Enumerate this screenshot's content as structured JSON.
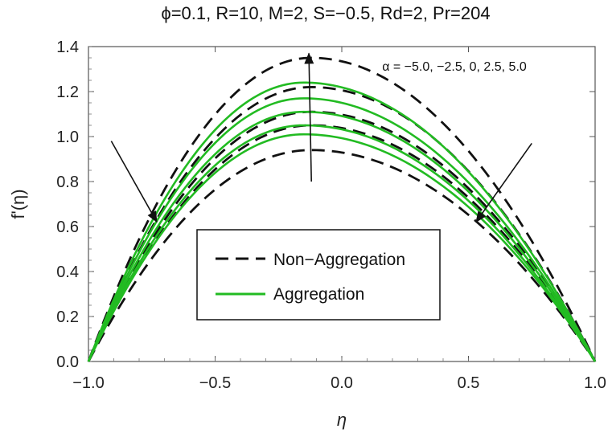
{
  "chart_data": {
    "type": "line",
    "title": "ϕ=0.1, R=10, M=2, S=−0.5, Rd=2, Pr=204",
    "xlabel": "η",
    "ylabel": "f'(η)",
    "xlim": [
      -1.0,
      1.0
    ],
    "ylim": [
      0.0,
      1.4
    ],
    "x_ticks": [
      -1.0,
      -0.5,
      0.0,
      0.5,
      1.0
    ],
    "x_tick_labels": [
      "−1.0",
      "−0.5",
      "0.0",
      "0.5",
      "1.0"
    ],
    "y_ticks": [
      0.0,
      0.2,
      0.4,
      0.6,
      0.8,
      1.0,
      1.2,
      1.4
    ],
    "y_tick_labels": [
      "0.0",
      "0.2",
      "0.4",
      "0.6",
      "0.8",
      "1.0",
      "1.2",
      "1.4"
    ],
    "annotation": "α = −5.0, −2.5, 0, 2.5, 5.0",
    "alpha_values": [
      -5.0,
      -2.5,
      0,
      2.5,
      5.0
    ],
    "colors": {
      "non_aggregation": "#111111",
      "aggregation": "#22bb22",
      "arrow": "#111111"
    },
    "series": [
      {
        "name": "Non-Aggregation",
        "style": "dashed",
        "alpha": -5.0,
        "peak_x": -0.12,
        "peak_y": 0.94
      },
      {
        "name": "Non-Aggregation",
        "style": "dashed",
        "alpha": -2.5,
        "peak_x": -0.12,
        "peak_y": 1.05
      },
      {
        "name": "Non-Aggregation",
        "style": "dashed",
        "alpha": 0,
        "peak_x": -0.12,
        "peak_y": 1.11
      },
      {
        "name": "Non-Aggregation",
        "style": "dashed",
        "alpha": 2.5,
        "peak_x": -0.12,
        "peak_y": 1.22
      },
      {
        "name": "Non-Aggregation",
        "style": "dashed",
        "alpha": 5.0,
        "peak_x": -0.12,
        "peak_y": 1.35
      },
      {
        "name": "Aggregation",
        "style": "solid",
        "alpha": -5.0,
        "peak_x": -0.15,
        "peak_y": 1.01
      },
      {
        "name": "Aggregation",
        "style": "solid",
        "alpha": -2.5,
        "peak_x": -0.15,
        "peak_y": 1.05
      },
      {
        "name": "Aggregation",
        "style": "solid",
        "alpha": 0,
        "peak_x": -0.15,
        "peak_y": 1.11
      },
      {
        "name": "Aggregation",
        "style": "solid",
        "alpha": 2.5,
        "peak_x": -0.15,
        "peak_y": 1.17
      },
      {
        "name": "Aggregation",
        "style": "solid",
        "alpha": 5.0,
        "peak_x": -0.15,
        "peak_y": 1.24
      }
    ],
    "arrows": [
      {
        "name": "left-arrow",
        "from": [
          -0.91,
          0.98
        ],
        "to": [
          -0.73,
          0.62
        ]
      },
      {
        "name": "center-arrow",
        "from": [
          -0.12,
          0.8
        ],
        "to": [
          -0.13,
          1.37
        ]
      },
      {
        "name": "right-arrow",
        "from": [
          0.75,
          0.97
        ],
        "to": [
          0.53,
          0.62
        ]
      }
    ],
    "legend": {
      "placement": "center-left",
      "entries": [
        {
          "label": "Non−Aggregation",
          "style": "dashed"
        },
        {
          "label": "Aggregation",
          "style": "solid"
        }
      ]
    }
  }
}
